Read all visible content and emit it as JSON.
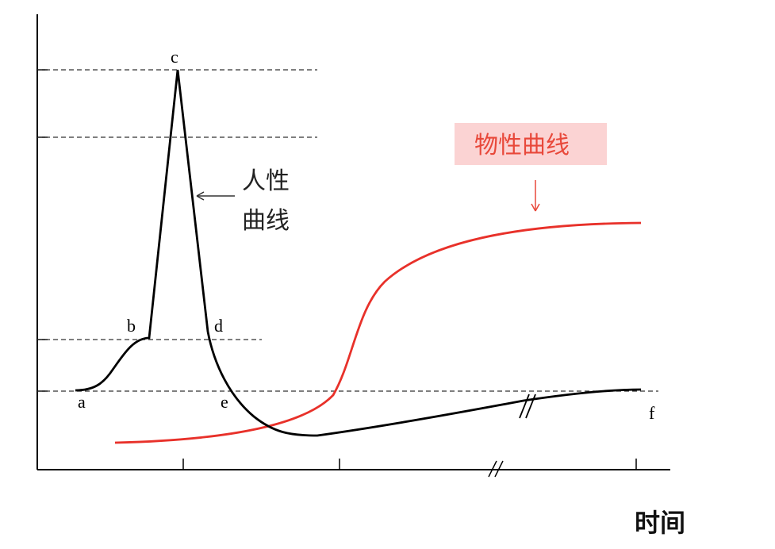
{
  "chart_data": {
    "type": "line",
    "xlabel": "时间",
    "ylabel": "",
    "grid": false,
    "series": [
      {
        "name": "人性曲线",
        "color": "#000000",
        "points": [
          {
            "label": "a"
          },
          {
            "label": "b"
          },
          {
            "label": "c"
          },
          {
            "label": "d"
          },
          {
            "label": "e"
          },
          {
            "label": "f"
          }
        ]
      },
      {
        "name": "物性曲线",
        "color": "#e8312a"
      }
    ],
    "annotations": {
      "human_curve_label_line1": "人性",
      "human_curve_label_line2": "曲线",
      "physical_curve_label": "物性曲线",
      "physical_label_bg": "#fbd3d3"
    }
  }
}
